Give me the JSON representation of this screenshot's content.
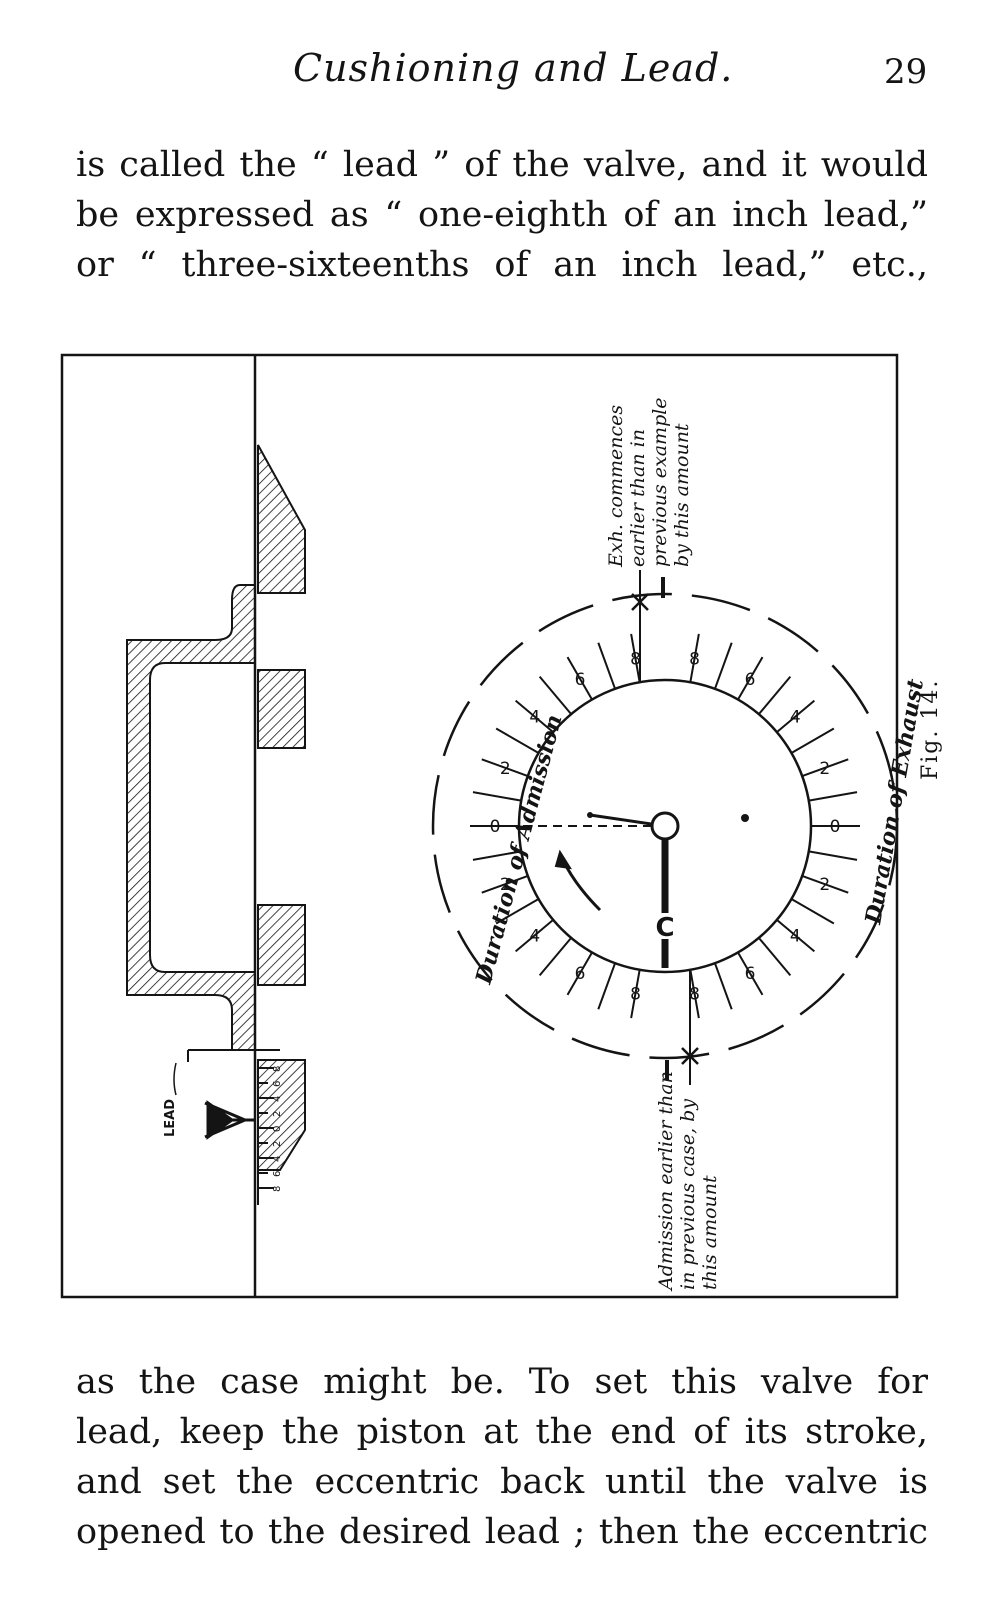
{
  "header": {
    "title": "Cushioning and Lead.",
    "page_number": "29"
  },
  "paragraph_top": {
    "lines": [
      "is called the “ lead ” of the valve, and it would",
      "be expressed as “ one-eighth of an inch lead,”",
      "or “ three-sixteenths of an inch lead,” etc.,"
    ]
  },
  "figure": {
    "caption": "Fig. 14.",
    "labels": {
      "lead": "LEAD",
      "crank": "C",
      "duration_admission": "Duration of Admission",
      "duration_exhaust": "Duration of Exhaust",
      "exhaust_note_1": "Exh. commences",
      "exhaust_note_2": "earlier than in",
      "exhaust_note_3": "previous example",
      "exhaust_note_4": "by this amount",
      "admission_note_1": "Admission earlier than",
      "admission_note_2": "in previous case, by",
      "admission_note_3": "this amount"
    },
    "dial_left_numbers": [
      "8",
      "6",
      "4",
      "2",
      "0",
      "2",
      "4",
      "6",
      "8"
    ],
    "dial_right_numbers": [
      "8",
      "6",
      "4",
      "2",
      "0",
      "2",
      "4",
      "6",
      "8"
    ],
    "scale_numbers": [
      "8",
      "6",
      "4",
      "2",
      "0",
      "2",
      "4",
      "6",
      "8"
    ]
  },
  "paragraph_bottom": {
    "lines": [
      "as the case might be.  To set this valve for",
      "lead, keep the piston at the end of its stroke,",
      "and set the eccentric back until the valve is",
      "opened to the desired lead ; then the eccentric"
    ]
  }
}
